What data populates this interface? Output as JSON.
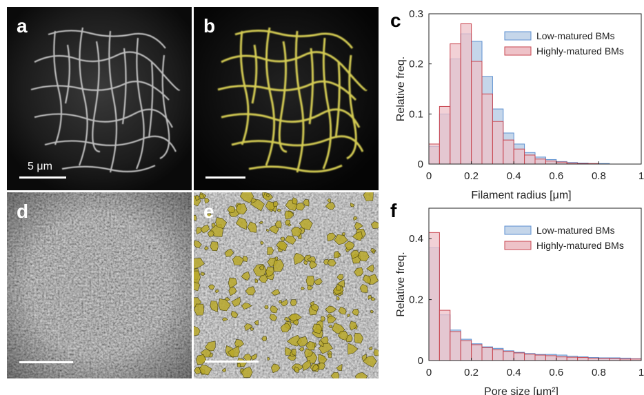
{
  "panels": {
    "a": {
      "letter": "a",
      "scalebar_label": "5 μm"
    },
    "b": {
      "letter": "b"
    },
    "d": {
      "letter": "d"
    },
    "e": {
      "letter": "e"
    }
  },
  "charts": {
    "c": {
      "letter": "c"
    },
    "f": {
      "letter": "f"
    }
  },
  "chart_data": [
    {
      "id": "c",
      "type": "bar",
      "xlabel": "Filament radius [μm]",
      "ylabel": "Relative freq.",
      "xlim": [
        0,
        1
      ],
      "ylim": [
        0,
        0.3
      ],
      "xticks": [
        "0",
        "0.2",
        "0.4",
        "0.6",
        "0.8",
        "1"
      ],
      "yticks": [
        "0",
        "0.1",
        "0.2",
        "0.3"
      ],
      "legend_position": "top-right",
      "bin_width": 0.05,
      "x": [
        0.0,
        0.05,
        0.1,
        0.15,
        0.2,
        0.25,
        0.3,
        0.35,
        0.4,
        0.45,
        0.5,
        0.55,
        0.6,
        0.65,
        0.7,
        0.75,
        0.8,
        0.85,
        0.9,
        0.95
      ],
      "series": [
        {
          "name": "Low-matured BMs",
          "color": "#5b8fd0",
          "fill": "#c5d6ea",
          "values": [
            0.035,
            0.1,
            0.21,
            0.26,
            0.245,
            0.175,
            0.11,
            0.062,
            0.04,
            0.023,
            0.014,
            0.009,
            0.005,
            0.003,
            0.002,
            0.001,
            0.001,
            0.0,
            0.0,
            0.0
          ]
        },
        {
          "name": "Highly-matured BMs",
          "color": "#c8454f",
          "fill": "#eec2c8",
          "values": [
            0.04,
            0.115,
            0.24,
            0.28,
            0.205,
            0.14,
            0.085,
            0.048,
            0.03,
            0.018,
            0.01,
            0.006,
            0.004,
            0.002,
            0.001,
            0.001,
            0.0,
            0.0,
            0.0,
            0.0
          ]
        }
      ]
    },
    {
      "id": "f",
      "type": "bar",
      "xlabel": "Pore size [μm²]",
      "ylabel": "Relative freq.",
      "xlim": [
        0,
        1
      ],
      "ylim": [
        0,
        0.5
      ],
      "xticks": [
        "0",
        "0.2",
        "0.4",
        "0.6",
        "0.8",
        "1"
      ],
      "yticks": [
        "0",
        "0.2",
        "0.4"
      ],
      "legend_position": "top-right",
      "bin_width": 0.05,
      "x": [
        0.0,
        0.05,
        0.1,
        0.15,
        0.2,
        0.25,
        0.3,
        0.35,
        0.4,
        0.45,
        0.5,
        0.55,
        0.6,
        0.65,
        0.7,
        0.75,
        0.8,
        0.85,
        0.9,
        0.95
      ],
      "series": [
        {
          "name": "Low-matured BMs",
          "color": "#5b8fd0",
          "fill": "#c5d6ea",
          "values": [
            0.37,
            0.15,
            0.1,
            0.07,
            0.055,
            0.045,
            0.04,
            0.032,
            0.027,
            0.023,
            0.02,
            0.02,
            0.018,
            0.014,
            0.012,
            0.01,
            0.009,
            0.009,
            0.008,
            0.006
          ]
        },
        {
          "name": "Highly-matured BMs",
          "color": "#c8454f",
          "fill": "#eec2c8",
          "values": [
            0.42,
            0.165,
            0.095,
            0.065,
            0.052,
            0.042,
            0.035,
            0.03,
            0.025,
            0.021,
            0.018,
            0.016,
            0.012,
            0.011,
            0.01,
            0.008,
            0.007,
            0.006,
            0.005,
            0.005
          ]
        }
      ]
    }
  ]
}
